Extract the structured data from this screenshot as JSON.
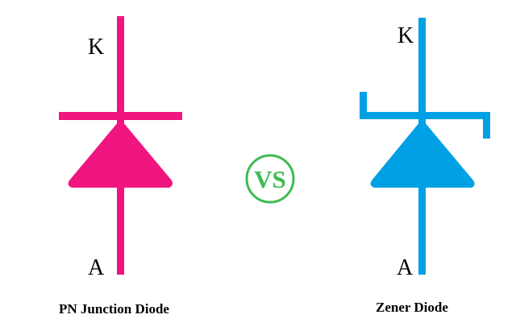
{
  "pn_diode": {
    "cathode_label": "K",
    "anode_label": "A",
    "caption": "PN Junction Diode",
    "color": "#f0157f"
  },
  "zener_diode": {
    "cathode_label": "K",
    "anode_label": "A",
    "caption": "Zener Diode",
    "color": "#00a1e4"
  },
  "versus": {
    "text": "VS",
    "color": "#3dbb52"
  }
}
